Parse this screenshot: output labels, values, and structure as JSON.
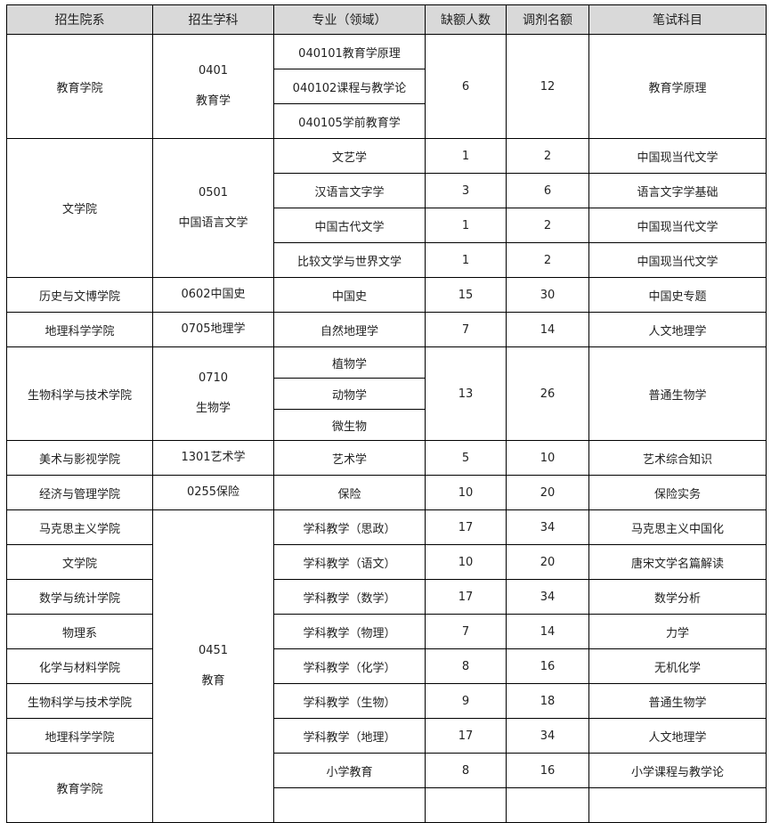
{
  "headers": [
    "招生院系",
    "招生学科",
    "专业（领域）",
    "缺额人数",
    "调剂名额",
    "笔试科目"
  ],
  "groups": [
    {
      "department": "教育学院",
      "subject_lines": [
        "0401",
        "教育学"
      ],
      "majors": [
        "040101教育学原理",
        "040102课程与教学论",
        "040105学前教育学"
      ],
      "shortage": "6",
      "adjust": "12",
      "exam": "教育学原理"
    },
    {
      "department": "文学院",
      "subject_lines": [
        "0501",
        "中国语言文学"
      ],
      "per_major": [
        {
          "major": "文艺学",
          "shortage": "1",
          "adjust": "2",
          "exam": "中国现当代文学"
        },
        {
          "major": "汉语言文字学",
          "shortage": "3",
          "adjust": "6",
          "exam": "语言文字学基础"
        },
        {
          "major": "中国古代文学",
          "shortage": "1",
          "adjust": "2",
          "exam": "中国现当代文学"
        },
        {
          "major": "比较文学与世界文学",
          "shortage": "1",
          "adjust": "2",
          "exam": "中国现当代文学"
        }
      ]
    },
    {
      "department": "历史与文博学院",
      "subject_lines": [
        "0602中国史"
      ],
      "majors": [
        "中国史"
      ],
      "shortage": "15",
      "adjust": "30",
      "exam": "中国史专题"
    },
    {
      "department": "地理科学学院",
      "subject_lines": [
        "0705地理学"
      ],
      "majors": [
        "自然地理学"
      ],
      "shortage": "7",
      "adjust": "14",
      "exam": "人文地理学"
    },
    {
      "department": "生物科学与技术学院",
      "subject_lines": [
        "0710",
        "生物学"
      ],
      "majors": [
        "植物学",
        "动物学",
        "微生物"
      ],
      "shortage": "13",
      "adjust": "26",
      "exam": "普通生物学"
    },
    {
      "department": "美术与影视学院",
      "subject_lines": [
        "1301艺术学"
      ],
      "majors": [
        "艺术学"
      ],
      "shortage": "5",
      "adjust": "10",
      "exam": "艺术综合知识"
    },
    {
      "department": "经济与管理学院",
      "subject_lines": [
        "0255保险"
      ],
      "majors": [
        "保险"
      ],
      "shortage": "10",
      "adjust": "20",
      "exam": "保险实务"
    }
  ],
  "education_section": {
    "subject_lines": [
      "0451",
      "教育"
    ],
    "rows": [
      {
        "department": "马克思主义学院",
        "major": "学科教学（思政）",
        "shortage": "17",
        "adjust": "34",
        "exam": "马克思主义中国化"
      },
      {
        "department": "文学院",
        "major": "学科教学（语文）",
        "shortage": "10",
        "adjust": "20",
        "exam": "唐宋文学名篇解读"
      },
      {
        "department": "数学与统计学院",
        "major": "学科教学（数学）",
        "shortage": "17",
        "adjust": "34",
        "exam": "数学分析"
      },
      {
        "department": "物理系",
        "major": "学科教学（物理）",
        "shortage": "7",
        "adjust": "14",
        "exam": "力学"
      },
      {
        "department": "化学与材料学院",
        "major": "学科教学（化学）",
        "shortage": "8",
        "adjust": "16",
        "exam": "无机化学"
      },
      {
        "department": "生物科学与技术学院",
        "major": "学科教学（生物）",
        "shortage": "9",
        "adjust": "18",
        "exam": "普通生物学"
      },
      {
        "department": "地理科学学院",
        "major": "学科教学（地理）",
        "shortage": "17",
        "adjust": "34",
        "exam": "人文地理学"
      },
      {
        "department": "教育学院",
        "major": "小学教育",
        "shortage": "8",
        "adjust": "16",
        "exam": "小学课程与教学论"
      }
    ]
  }
}
